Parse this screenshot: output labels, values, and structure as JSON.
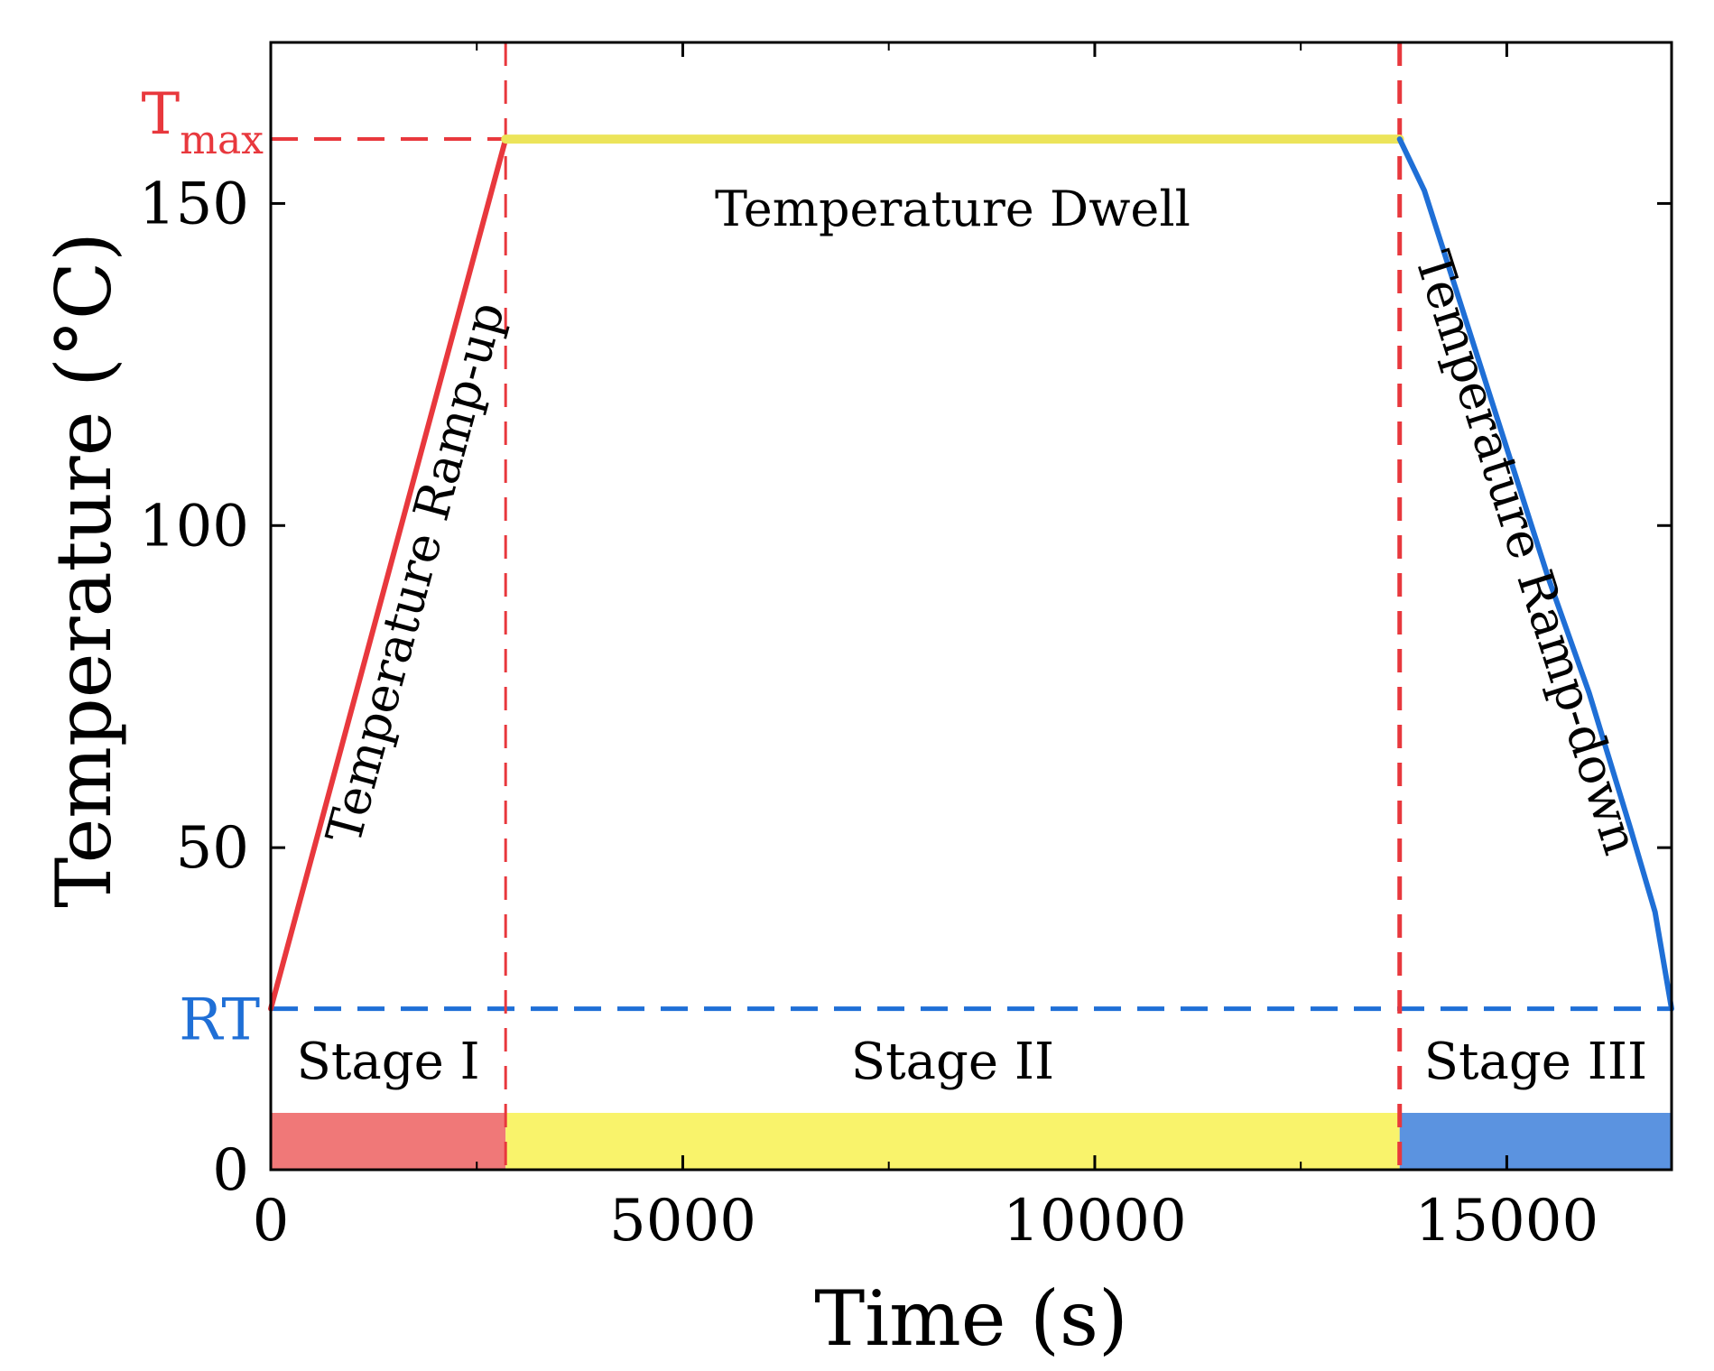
{
  "chart_data": {
    "type": "line",
    "title": "",
    "xlabel": "Time (s)",
    "ylabel": "Temperature (°C)",
    "xlim": [
      0,
      17000
    ],
    "ylim": [
      0,
      175
    ],
    "xticks": [
      0,
      5000,
      10000,
      15000
    ],
    "xtick_labels": [
      "0",
      "5000",
      "10000",
      "15000"
    ],
    "xticks_minor": [
      2500,
      7500,
      12500
    ],
    "yticks": [
      0,
      50,
      100,
      150
    ],
    "ytick_labels": [
      "0",
      "50",
      "100",
      "150"
    ],
    "grid": false,
    "reference_lines": {
      "tmax": {
        "label_main": "T",
        "label_sub": "max",
        "value": 160,
        "color": "#e8383d"
      },
      "rt": {
        "label": "RT",
        "value": 25,
        "color": "#1f6fd6"
      },
      "stage_boundaries": [
        2850,
        13700
      ]
    },
    "series": [
      {
        "name": "Temperature Ramp-up",
        "color": "#e8383d",
        "x": [
          0,
          2850
        ],
        "y": [
          25,
          160
        ]
      },
      {
        "name": "Temperature Dwell",
        "color": "#ece45a",
        "x": [
          2850,
          13700
        ],
        "y": [
          160,
          160
        ]
      },
      {
        "name": "Temperature Ramp-down",
        "color": "#1f6fd6",
        "x": [
          13700,
          14000,
          14500,
          15000,
          15500,
          16000,
          16500,
          16800,
          17000
        ],
        "y": [
          160,
          152,
          132,
          112,
          92,
          74,
          53,
          40,
          25
        ]
      }
    ],
    "annotations": {
      "dwell": "Temperature Dwell",
      "ramp_up": "Temperature Ramp-up",
      "ramp_down": "Temperature Ramp-down"
    },
    "stages": [
      {
        "label": "Stage I",
        "start": 0,
        "end": 2850,
        "color": "#f07878"
      },
      {
        "label": "Stage II",
        "start": 2850,
        "end": 13700,
        "color": "#f9f36b"
      },
      {
        "label": "Stage III",
        "start": 13700,
        "end": 17000,
        "color": "#5b93e0"
      }
    ]
  }
}
